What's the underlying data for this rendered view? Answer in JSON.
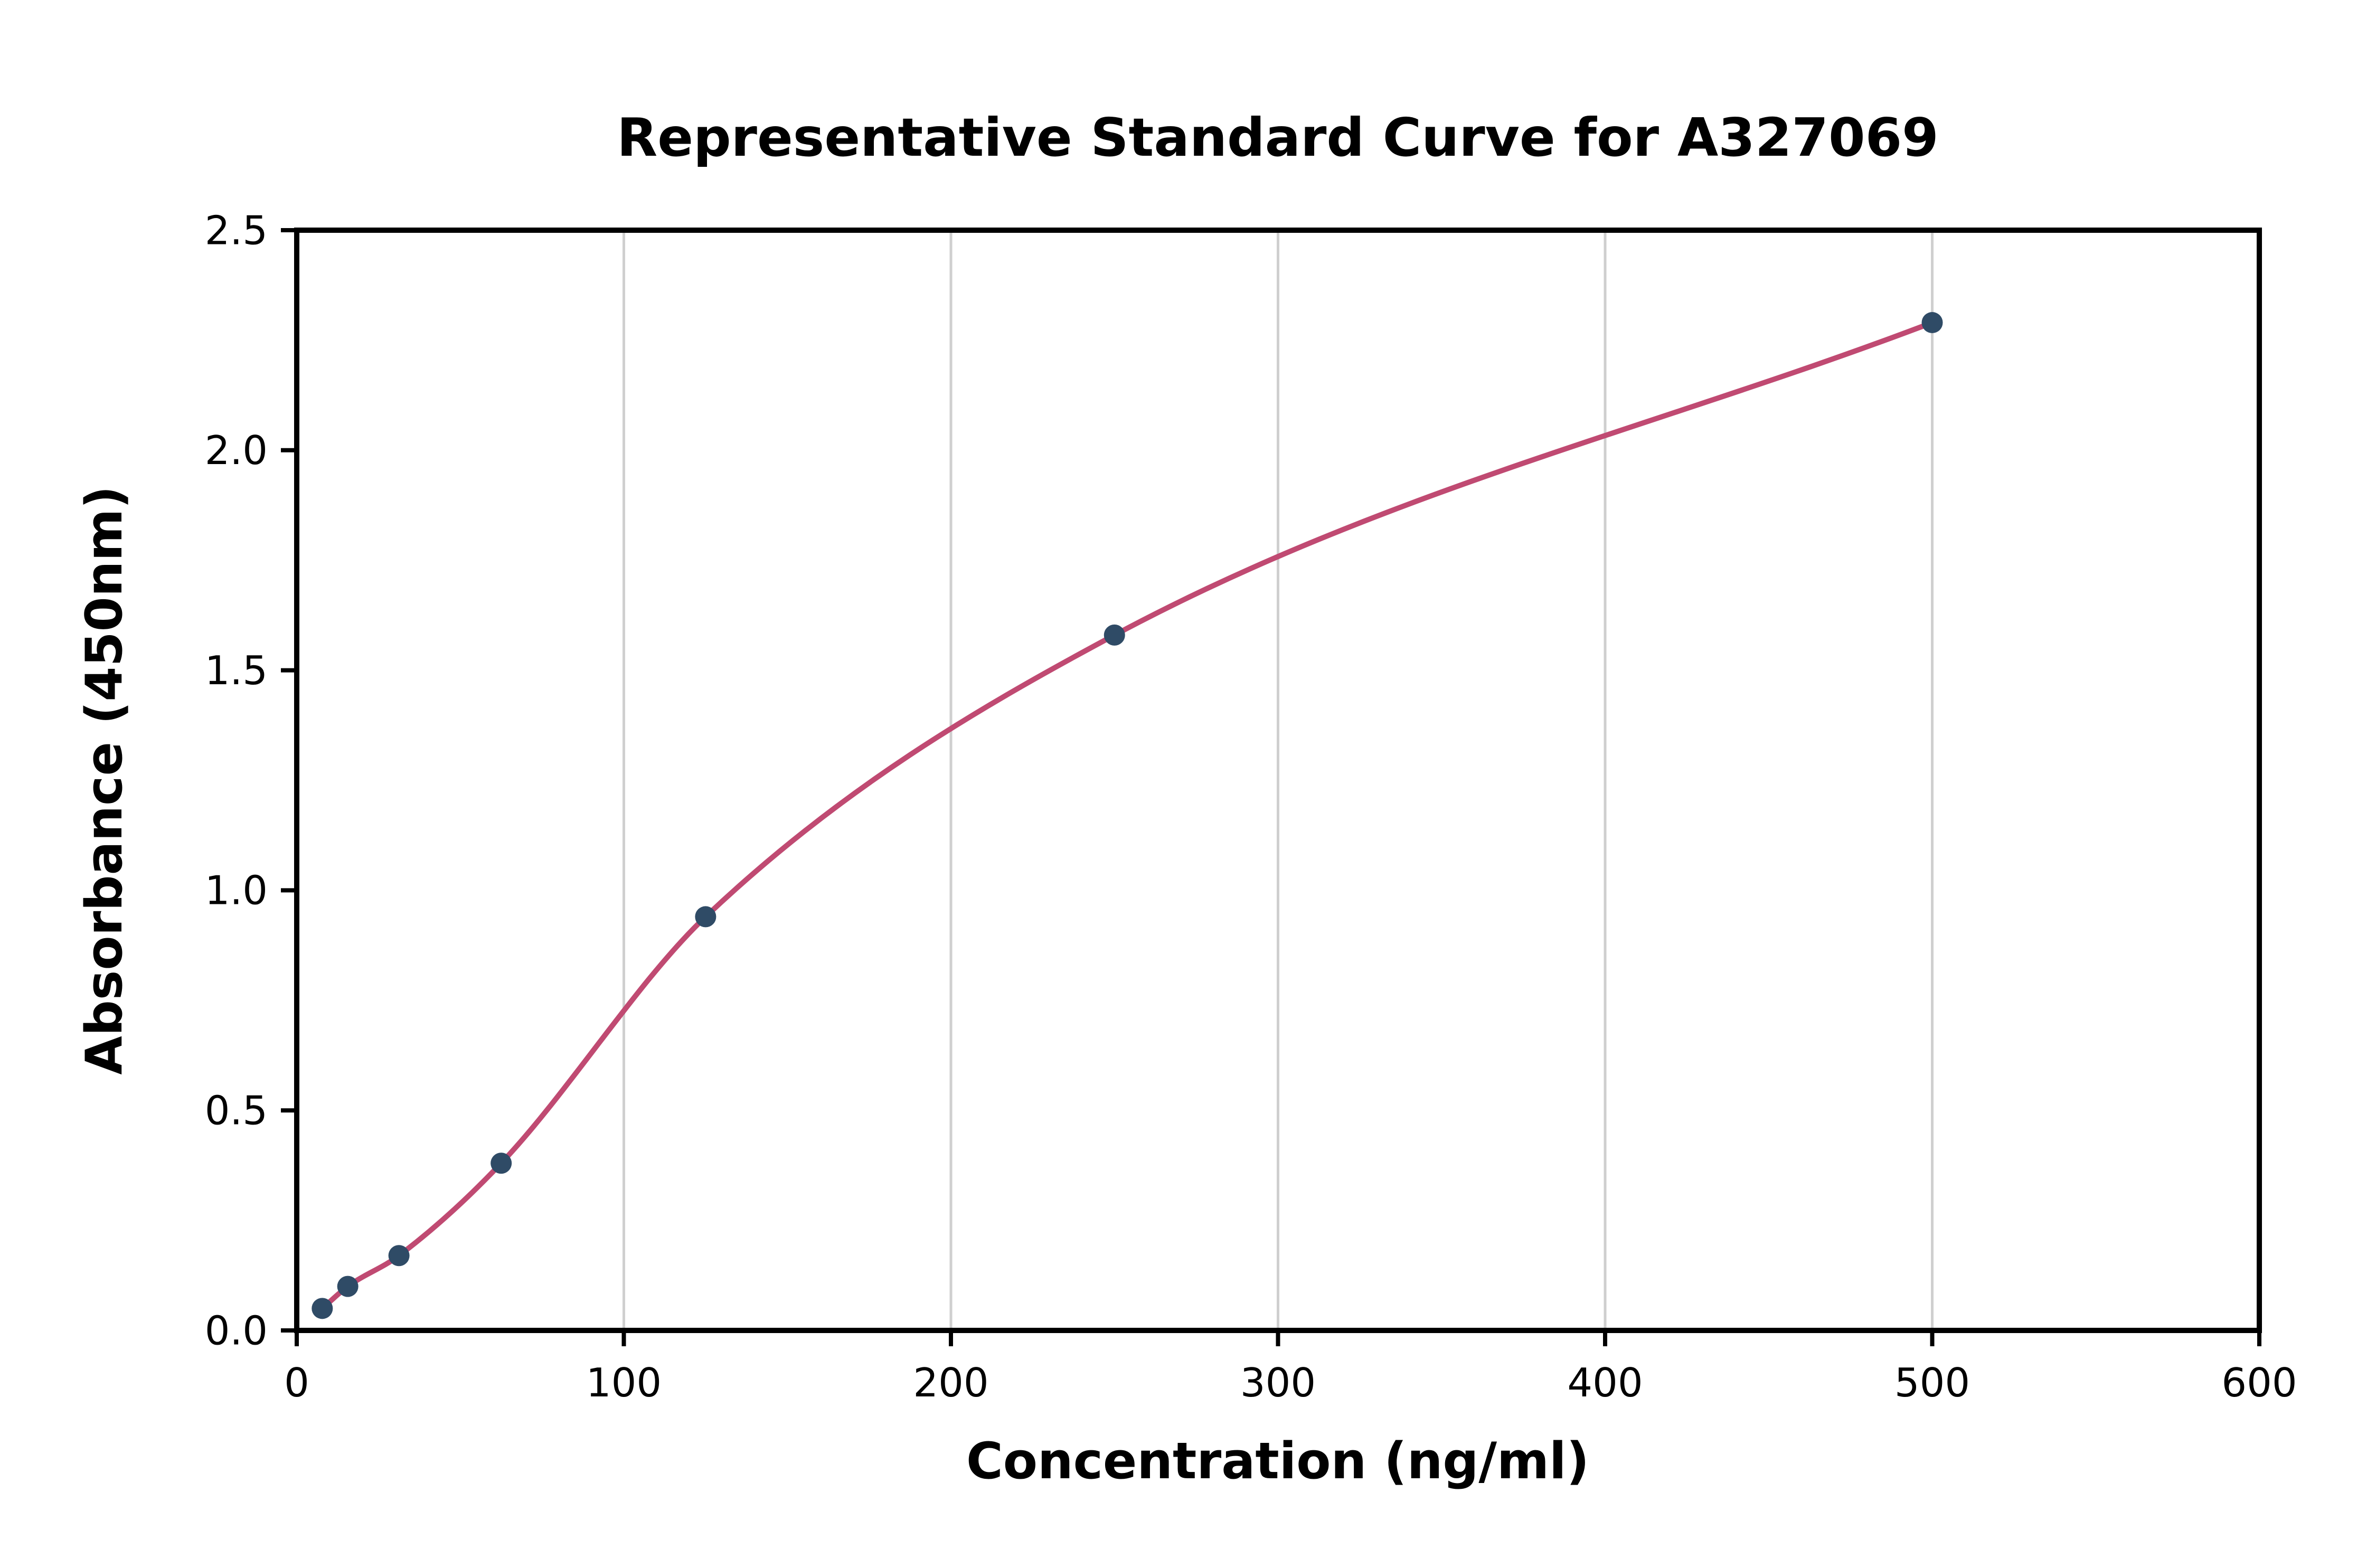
{
  "chart_data": {
    "type": "scatter",
    "title": "Representative Standard Curve for A327069",
    "xlabel": "Concentration (ng/ml)",
    "ylabel": "Absorbance (450nm)",
    "xlim": [
      0,
      600
    ],
    "ylim": [
      0,
      2.5
    ],
    "x_ticks": [
      0,
      100,
      200,
      300,
      400,
      500,
      600
    ],
    "y_ticks": [
      0.0,
      0.5,
      1.0,
      1.5,
      2.0,
      2.5
    ],
    "grid": "vertical",
    "legend": "none",
    "fit_line": true,
    "points": [
      {
        "x": 7.8,
        "y": 0.05
      },
      {
        "x": 15.6,
        "y": 0.1
      },
      {
        "x": 31.25,
        "y": 0.17
      },
      {
        "x": 62.5,
        "y": 0.38
      },
      {
        "x": 125,
        "y": 0.94
      },
      {
        "x": 250,
        "y": 1.58
      },
      {
        "x": 500,
        "y": 2.29
      }
    ],
    "colors": {
      "curve": "#c04a72",
      "points": "#2f4b66",
      "grid": "#cfcfcf",
      "spine": "#000000",
      "background": "#ffffff"
    }
  }
}
